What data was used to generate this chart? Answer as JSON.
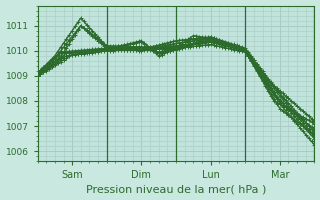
{
  "bg_color": "#c8e8e0",
  "plot_bg_color": "#c0e4dc",
  "line_color": "#2d6b2d",
  "marker": "+",
  "markersize": 3,
  "linewidth": 1.0,
  "xlabel": "Pression niveau de la mer( hPa )",
  "xlabel_fontsize": 8,
  "yticks": [
    1006,
    1007,
    1008,
    1009,
    1010,
    1011
  ],
  "ylim": [
    1005.6,
    1011.8
  ],
  "grid_color": "#a8ccc4",
  "vline_color": "#2d6b2d",
  "series": [
    {
      "x": [
        0,
        6,
        15,
        24,
        36,
        48,
        60,
        72,
        84,
        96
      ],
      "y": [
        1009.1,
        1009.8,
        1011.3,
        1010.15,
        1010.05,
        1010.4,
        1010.55,
        1010.0,
        1007.9,
        1006.25
      ]
    },
    {
      "x": [
        0,
        8,
        15,
        24,
        36,
        48,
        60,
        72,
        84,
        96
      ],
      "y": [
        1009.05,
        1009.75,
        1011.0,
        1010.1,
        1010.0,
        1010.3,
        1010.5,
        1010.0,
        1008.2,
        1006.6
      ]
    },
    {
      "x": [
        0,
        10,
        24,
        36,
        48,
        60,
        72,
        84,
        96
      ],
      "y": [
        1009.0,
        1009.9,
        1010.1,
        1010.15,
        1010.2,
        1010.4,
        1010.05,
        1008.0,
        1006.85
      ]
    },
    {
      "x": [
        0,
        12,
        24,
        36,
        48,
        60,
        72,
        84,
        96
      ],
      "y": [
        1009.0,
        1009.85,
        1010.05,
        1010.1,
        1010.15,
        1010.35,
        1010.0,
        1007.7,
        1006.65
      ]
    },
    {
      "x": [
        0,
        10,
        24,
        36,
        48,
        60,
        72,
        82,
        96
      ],
      "y": [
        1009.0,
        1009.8,
        1010.0,
        1010.05,
        1010.1,
        1010.25,
        1009.95,
        1008.3,
        1006.5
      ]
    },
    {
      "x": [
        0,
        8,
        24,
        36,
        42,
        48,
        54,
        60,
        72,
        82,
        96
      ],
      "y": [
        1009.05,
        1009.9,
        1010.05,
        1010.4,
        1009.8,
        1010.1,
        1010.6,
        1010.5,
        1010.0,
        1008.0,
        1007.1
      ]
    },
    {
      "x": [
        0,
        8,
        24,
        36,
        42,
        50,
        60,
        72,
        80,
        90,
        96
      ],
      "y": [
        1009.1,
        1009.95,
        1010.1,
        1010.35,
        1009.9,
        1010.1,
        1010.55,
        1010.1,
        1008.8,
        1007.8,
        1007.2
      ]
    },
    {
      "x": [
        0,
        6,
        15,
        24,
        36,
        42,
        48,
        60,
        72,
        84,
        96
      ],
      "y": [
        1009.1,
        1009.7,
        1011.0,
        1010.2,
        1010.15,
        1009.95,
        1010.1,
        1010.45,
        1010.05,
        1008.3,
        1006.75
      ]
    }
  ],
  "xlim": [
    0,
    96
  ],
  "day_vlines": [
    24,
    48,
    72,
    96
  ],
  "xtick_positions": [
    12,
    36,
    60,
    84
  ],
  "xtick_labels": [
    "Sam",
    "Dim",
    "Lun",
    "Mar"
  ]
}
